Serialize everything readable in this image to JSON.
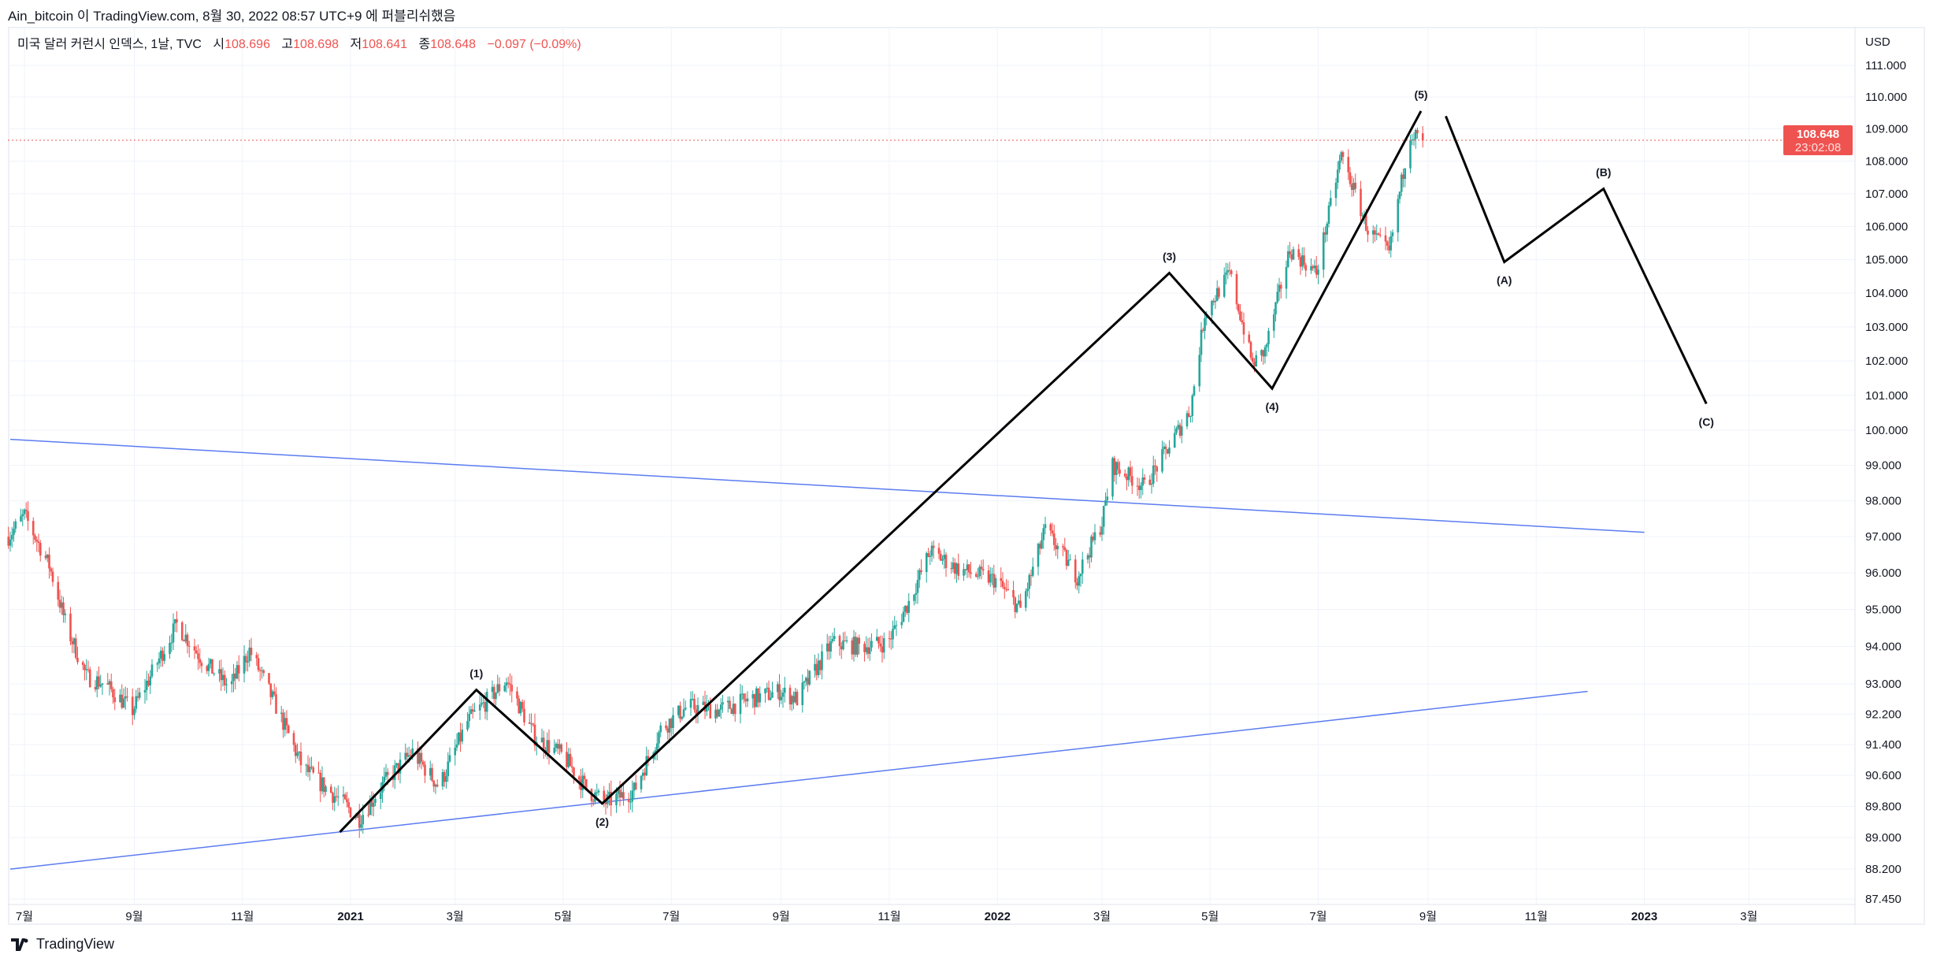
{
  "header": {
    "published": "Ain_bitcoin 이 TradingView.com, 8월 30, 2022 08:57 UTC+9 에 퍼블리쉬했음"
  },
  "legend": {
    "symbol": "미국 달러 커런시 인덱스, 1날, TVC",
    "open_label": "시",
    "open": "108.696",
    "high_label": "고",
    "high": "108.698",
    "low_label": "저",
    "low": "108.641",
    "close_label": "종",
    "close": "108.648",
    "change": "−0.097 (−0.09%)"
  },
  "price_tag": {
    "price": "108.648",
    "countdown": "23:02:08"
  },
  "footer": {
    "brand": "TradingView"
  },
  "colors": {
    "up": "#26a69a",
    "down": "#ef5350",
    "trendline": "#5b7cf0",
    "wave": "#000000",
    "price_line": "#ef5350"
  },
  "chart_data": {
    "type": "candlestick",
    "interval": "1D",
    "y_scale": "log",
    "ylim": [
      87.45,
      111.0
    ],
    "xlim": [
      "2020-06-20",
      "2023-05-05"
    ],
    "y_unit": "USD",
    "y_ticks": [
      "111.000",
      "110.000",
      "109.000",
      "108.000",
      "107.000",
      "106.000",
      "105.000",
      "104.000",
      "103.000",
      "102.000",
      "101.000",
      "100.000",
      "99.000",
      "98.000",
      "97.000",
      "96.000",
      "95.000",
      "94.000",
      "93.000",
      "92.200",
      "91.400",
      "90.600",
      "89.800",
      "89.000",
      "88.200",
      "87.450"
    ],
    "x_ticks": [
      {
        "label": "7월",
        "date": "2020-07-01",
        "bold": false
      },
      {
        "label": "9월",
        "date": "2020-09-01",
        "bold": false
      },
      {
        "label": "11월",
        "date": "2020-11-01",
        "bold": false
      },
      {
        "label": "2021",
        "date": "2021-01-01",
        "bold": true
      },
      {
        "label": "3월",
        "date": "2021-03-01",
        "bold": false
      },
      {
        "label": "5월",
        "date": "2021-05-01",
        "bold": false
      },
      {
        "label": "7월",
        "date": "2021-07-01",
        "bold": false
      },
      {
        "label": "9월",
        "date": "2021-09-01",
        "bold": false
      },
      {
        "label": "11월",
        "date": "2021-11-01",
        "bold": false
      },
      {
        "label": "2022",
        "date": "2022-01-01",
        "bold": true
      },
      {
        "label": "3월",
        "date": "2022-03-01",
        "bold": false
      },
      {
        "label": "5월",
        "date": "2022-05-01",
        "bold": false
      },
      {
        "label": "7월",
        "date": "2022-07-01",
        "bold": false
      },
      {
        "label": "9월",
        "date": "2022-09-01",
        "bold": false
      },
      {
        "label": "11월",
        "date": "2022-11-01",
        "bold": false
      },
      {
        "label": "2023",
        "date": "2023-01-01",
        "bold": true
      },
      {
        "label": "3월",
        "date": "2023-03-01",
        "bold": false
      }
    ],
    "last_price": 108.648,
    "close_path": [
      [
        "2020-06-22",
        97.0
      ],
      [
        "2020-07-01",
        97.6
      ],
      [
        "2020-07-15",
        96.2
      ],
      [
        "2020-07-25",
        94.5
      ],
      [
        "2020-08-05",
        93.2
      ],
      [
        "2020-08-15",
        93.0
      ],
      [
        "2020-08-31",
        92.3
      ],
      [
        "2020-09-10",
        93.2
      ],
      [
        "2020-09-25",
        94.6
      ],
      [
        "2020-10-10",
        93.6
      ],
      [
        "2020-10-25",
        92.9
      ],
      [
        "2020-11-05",
        93.9
      ],
      [
        "2020-11-20",
        92.4
      ],
      [
        "2020-12-05",
        90.8
      ],
      [
        "2020-12-20",
        90.2
      ],
      [
        "2021-01-06",
        89.5
      ],
      [
        "2021-01-20",
        90.4
      ],
      [
        "2021-02-05",
        91.2
      ],
      [
        "2021-02-20",
        90.3
      ],
      [
        "2021-03-08",
        92.0
      ],
      [
        "2021-03-30",
        93.1
      ],
      [
        "2021-04-15",
        91.6
      ],
      [
        "2021-05-01",
        91.1
      ],
      [
        "2021-05-15",
        90.2
      ],
      [
        "2021-05-25",
        89.9
      ],
      [
        "2021-06-10",
        90.2
      ],
      [
        "2021-06-25",
        91.8
      ],
      [
        "2021-07-10",
        92.4
      ],
      [
        "2021-07-28",
        92.3
      ],
      [
        "2021-08-15",
        92.6
      ],
      [
        "2021-08-31",
        92.8
      ],
      [
        "2021-09-10",
        92.6
      ],
      [
        "2021-09-30",
        94.1
      ],
      [
        "2021-10-15",
        94.0
      ],
      [
        "2021-10-31",
        94.1
      ],
      [
        "2021-11-12",
        95.2
      ],
      [
        "2021-11-24",
        96.6
      ],
      [
        "2021-12-10",
        96.1
      ],
      [
        "2021-12-31",
        95.8
      ],
      [
        "2022-01-14",
        95.0
      ],
      [
        "2022-01-28",
        97.2
      ],
      [
        "2022-02-15",
        95.9
      ],
      [
        "2022-03-01",
        97.4
      ],
      [
        "2022-03-07",
        99.0
      ],
      [
        "2022-03-25",
        98.4
      ],
      [
        "2022-04-05",
        99.3
      ],
      [
        "2022-04-20",
        100.6
      ],
      [
        "2022-04-28",
        103.4
      ],
      [
        "2022-05-12",
        104.6
      ],
      [
        "2022-05-25",
        101.9
      ],
      [
        "2022-06-01",
        102.3
      ],
      [
        "2022-06-15",
        105.3
      ],
      [
        "2022-06-30",
        104.6
      ],
      [
        "2022-07-14",
        108.2
      ],
      [
        "2022-07-29",
        105.9
      ],
      [
        "2022-08-10",
        105.2
      ],
      [
        "2022-08-22",
        108.9
      ],
      [
        "2022-08-29",
        108.648
      ]
    ],
    "trendlines": [
      {
        "from": [
          "2020-06-23",
          99.74
        ],
        "to": [
          "2023-01-01",
          97.12
        ]
      },
      {
        "from": [
          "2020-06-23",
          88.2
        ],
        "to": [
          "2022-11-30",
          92.8
        ]
      }
    ],
    "wave_paths": [
      [
        [
          "2020-12-26",
          89.14
        ],
        [
          "2021-03-13",
          92.84
        ],
        [
          "2021-05-23",
          89.87
        ],
        [
          "2022-04-08",
          104.6
        ],
        [
          "2022-06-05",
          101.2
        ],
        [
          "2022-08-28",
          109.56
        ]
      ],
      [
        [
          "2022-09-11",
          109.4
        ],
        [
          "2022-10-14",
          104.93
        ],
        [
          "2022-12-09",
          107.15
        ],
        [
          "2023-02-05",
          100.76
        ]
      ]
    ],
    "wave_labels": [
      {
        "text": "(1)",
        "date": "2021-03-13",
        "price": 92.84,
        "pos": "above"
      },
      {
        "text": "(2)",
        "date": "2021-05-23",
        "price": 89.87,
        "pos": "below"
      },
      {
        "text": "(3)",
        "date": "2022-04-08",
        "price": 104.6,
        "pos": "above"
      },
      {
        "text": "(4)",
        "date": "2022-06-05",
        "price": 101.2,
        "pos": "below"
      },
      {
        "text": "(5)",
        "date": "2022-08-28",
        "price": 109.56,
        "pos": "above"
      },
      {
        "text": "(A)",
        "date": "2022-10-14",
        "price": 104.93,
        "pos": "below"
      },
      {
        "text": "(B)",
        "date": "2022-12-09",
        "price": 107.15,
        "pos": "above"
      },
      {
        "text": "(C)",
        "date": "2023-02-05",
        "price": 100.76,
        "pos": "below"
      }
    ]
  }
}
